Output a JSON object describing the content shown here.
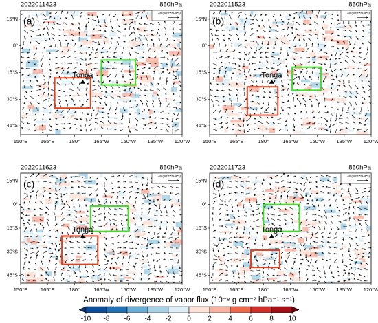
{
  "map": {
    "lonlim": [
      150,
      240
    ],
    "latlim": [
      -50,
      20
    ],
    "lon_ticks": [
      {
        "value": 150,
        "label": "150°E"
      },
      {
        "value": 165,
        "label": "165°E"
      },
      {
        "value": 180,
        "label": "180°"
      },
      {
        "value": 195,
        "label": "165°W"
      },
      {
        "value": 210,
        "label": "150°W"
      },
      {
        "value": 225,
        "label": "135°W"
      },
      {
        "value": 240,
        "label": "120°W"
      }
    ],
    "lat_ticks": [
      {
        "value": 15,
        "label": "15°N"
      },
      {
        "value": 0,
        "label": "0°"
      },
      {
        "value": -15,
        "label": "15°S"
      },
      {
        "value": -30,
        "label": "30°S"
      },
      {
        "value": -45,
        "label": "45°S"
      }
    ],
    "tonga_location": {
      "lon": 184.6,
      "lat": -20.5
    }
  },
  "panels": [
    {
      "label": "(a)",
      "date": "2022011423",
      "level": "850hPa",
      "tonga": "Tonga",
      "vector_ref": "40 g/(cm*hPa*s)",
      "red_box": {
        "lon": [
          169,
          189
        ],
        "lat": [
          -35,
          -18
        ]
      },
      "green_box": {
        "lon": [
          195,
          214
        ],
        "lat": [
          -22,
          -8
        ]
      }
    },
    {
      "label": "(b)",
      "date": "2022011523",
      "level": "850hPa",
      "tonga": "Tonga",
      "vector_ref": "40 g/(cm*hPa*s)",
      "red_box": {
        "lon": [
          171,
          188
        ],
        "lat": [
          -39,
          -23
        ]
      },
      "green_box": {
        "lon": [
          196,
          212
        ],
        "lat": [
          -25,
          -12
        ]
      }
    },
    {
      "label": "(c)",
      "date": "2022011623",
      "level": "850hPa",
      "tonga": "Tonga",
      "vector_ref": "40 g/(cm*hPa*s)",
      "red_box": {
        "lon": [
          173,
          193
        ],
        "lat": [
          -38,
          -20
        ]
      },
      "green_box": {
        "lon": [
          189,
          210
        ],
        "lat": [
          -17,
          -1
        ]
      }
    },
    {
      "label": "(d)",
      "date": "2022011723",
      "level": "850hPa",
      "tonga": "Tonga",
      "vector_ref": "40 g/(cm*hPa*s)",
      "red_box": {
        "lon": [
          173,
          189
        ],
        "lat": [
          -40,
          -29
        ]
      },
      "green_box": {
        "lon": [
          180,
          200
        ],
        "lat": [
          -17,
          0
        ]
      }
    }
  ],
  "colorbar": {
    "title": "Anomaly of divergence of vapor flux (10⁻⁸ g cm⁻² hPa⁻¹ s⁻¹)",
    "ticks": [
      -10,
      -8,
      -6,
      -4,
      -2,
      0,
      2,
      4,
      6,
      8,
      10
    ],
    "colors": [
      "#08306b",
      "#0b4f9c",
      "#2171b5",
      "#6baed6",
      "#a6d1e6",
      "#deeef7",
      "#fde0d6",
      "#f8b3a2",
      "#ef6a4c",
      "#d1302a",
      "#a50f15",
      "#67000d"
    ]
  }
}
